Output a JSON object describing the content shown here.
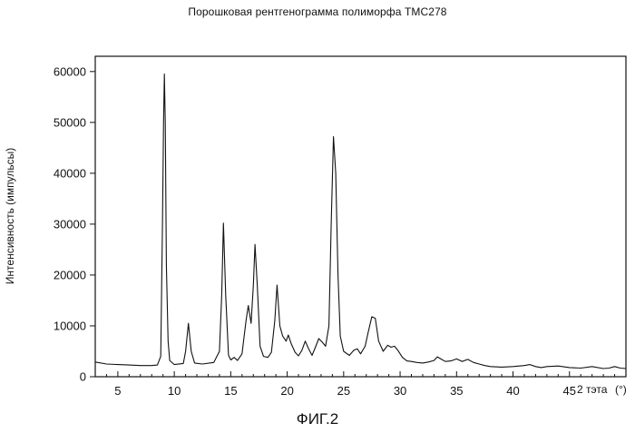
{
  "chart_data": {
    "type": "line",
    "title": "Порошковая рентгенограмма полиморфа TMC278",
    "xlabel": "2 тэта",
    "xunit": "(°)",
    "ylabel": "Интенсивность (импульсы)",
    "caption": "ФИГ.2",
    "xlim": [
      3,
      50
    ],
    "ylim": [
      0,
      63000
    ],
    "x_ticks": [
      5,
      10,
      15,
      20,
      25,
      30,
      35,
      40,
      45
    ],
    "x_tick_labels": [
      "5",
      "10",
      "15",
      "20",
      "25",
      "30",
      "35",
      "40",
      "45"
    ],
    "y_ticks": [
      0,
      10000,
      20000,
      30000,
      40000,
      50000,
      60000
    ],
    "y_tick_labels": [
      "0",
      "10000",
      "20000",
      "30000",
      "40000",
      "50000",
      "60000"
    ],
    "grid": false,
    "series": [
      {
        "line_color": "#111111",
        "points": [
          [
            3.0,
            2900
          ],
          [
            4.0,
            2500
          ],
          [
            5.0,
            2400
          ],
          [
            6.0,
            2300
          ],
          [
            7.0,
            2200
          ],
          [
            8.0,
            2200
          ],
          [
            8.5,
            2300
          ],
          [
            8.8,
            4000
          ],
          [
            8.95,
            30000
          ],
          [
            9.05,
            50000
          ],
          [
            9.12,
            59500
          ],
          [
            9.2,
            50000
          ],
          [
            9.3,
            22000
          ],
          [
            9.45,
            7000
          ],
          [
            9.6,
            3200
          ],
          [
            10.0,
            2400
          ],
          [
            10.8,
            2600
          ],
          [
            11.0,
            5000
          ],
          [
            11.25,
            10500
          ],
          [
            11.5,
            5000
          ],
          [
            11.8,
            2700
          ],
          [
            12.5,
            2500
          ],
          [
            13.5,
            2800
          ],
          [
            14.0,
            5000
          ],
          [
            14.2,
            16000
          ],
          [
            14.35,
            30200
          ],
          [
            14.55,
            16000
          ],
          [
            14.8,
            4200
          ],
          [
            15.0,
            3300
          ],
          [
            15.3,
            3800
          ],
          [
            15.6,
            3200
          ],
          [
            16.0,
            4500
          ],
          [
            16.35,
            11000
          ],
          [
            16.55,
            14000
          ],
          [
            16.8,
            10500
          ],
          [
            17.0,
            18000
          ],
          [
            17.15,
            26000
          ],
          [
            17.35,
            18000
          ],
          [
            17.6,
            6000
          ],
          [
            17.9,
            4000
          ],
          [
            18.3,
            3800
          ],
          [
            18.6,
            4800
          ],
          [
            18.9,
            11000
          ],
          [
            19.1,
            18000
          ],
          [
            19.35,
            10000
          ],
          [
            19.6,
            8000
          ],
          [
            19.9,
            7000
          ],
          [
            20.1,
            8200
          ],
          [
            20.35,
            6500
          ],
          [
            20.7,
            4800
          ],
          [
            21.0,
            4100
          ],
          [
            21.3,
            5200
          ],
          [
            21.6,
            7000
          ],
          [
            21.9,
            5500
          ],
          [
            22.2,
            4200
          ],
          [
            22.5,
            5800
          ],
          [
            22.8,
            7500
          ],
          [
            23.1,
            6800
          ],
          [
            23.4,
            6000
          ],
          [
            23.7,
            10000
          ],
          [
            23.9,
            30000
          ],
          [
            24.1,
            47200
          ],
          [
            24.3,
            40000
          ],
          [
            24.5,
            20000
          ],
          [
            24.7,
            8000
          ],
          [
            25.0,
            5000
          ],
          [
            25.5,
            4200
          ],
          [
            25.9,
            5200
          ],
          [
            26.2,
            5500
          ],
          [
            26.5,
            4500
          ],
          [
            26.9,
            6000
          ],
          [
            27.2,
            9000
          ],
          [
            27.5,
            11800
          ],
          [
            27.8,
            11500
          ],
          [
            28.1,
            7000
          ],
          [
            28.5,
            5000
          ],
          [
            28.9,
            6200
          ],
          [
            29.2,
            5800
          ],
          [
            29.5,
            6000
          ],
          [
            29.8,
            5200
          ],
          [
            30.2,
            3800
          ],
          [
            30.6,
            3100
          ],
          [
            31.0,
            3000
          ],
          [
            31.5,
            2800
          ],
          [
            32.0,
            2700
          ],
          [
            32.5,
            2900
          ],
          [
            33.0,
            3200
          ],
          [
            33.3,
            3900
          ],
          [
            33.6,
            3500
          ],
          [
            34.0,
            3000
          ],
          [
            34.5,
            3100
          ],
          [
            35.0,
            3500
          ],
          [
            35.5,
            3000
          ],
          [
            36.0,
            3400
          ],
          [
            36.5,
            2800
          ],
          [
            37.0,
            2500
          ],
          [
            37.5,
            2200
          ],
          [
            38.0,
            2000
          ],
          [
            39.0,
            1900
          ],
          [
            40.0,
            2000
          ],
          [
            41.0,
            2200
          ],
          [
            41.5,
            2400
          ],
          [
            42.0,
            2000
          ],
          [
            42.5,
            1800
          ],
          [
            43.0,
            2000
          ],
          [
            44.0,
            2100
          ],
          [
            45.0,
            1800
          ],
          [
            46.0,
            1700
          ],
          [
            47.0,
            2000
          ],
          [
            48.0,
            1600
          ],
          [
            48.5,
            1700
          ],
          [
            49.0,
            2000
          ],
          [
            49.5,
            1700
          ],
          [
            50.0,
            1600
          ]
        ]
      }
    ]
  }
}
